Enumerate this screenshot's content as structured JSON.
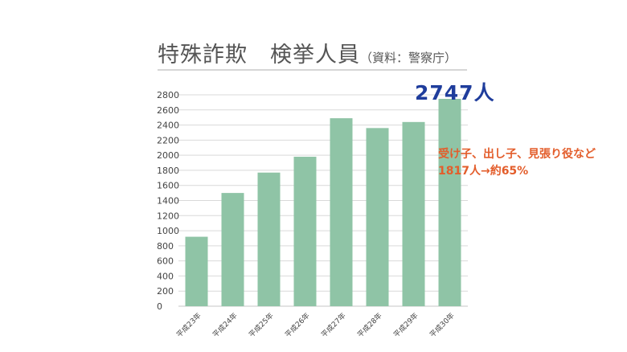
{
  "chart_data": {
    "type": "bar",
    "title": "特殊詐欺　検挙人員",
    "subtitle": "（資料：警察庁）",
    "categories": [
      "平成23年",
      "平成24年",
      "平成25年",
      "平成26年",
      "平成27年",
      "平成28年",
      "平成29年",
      "平成30年"
    ],
    "values": [
      920,
      1500,
      1770,
      1980,
      2490,
      2360,
      2440,
      2747
    ],
    "ylim": [
      0,
      2800
    ],
    "yticks": [
      0,
      200,
      400,
      600,
      800,
      1000,
      1200,
      1400,
      1600,
      1800,
      2000,
      2200,
      2400,
      2600,
      2800
    ],
    "xlabel": "",
    "ylabel": "",
    "grid": true,
    "bar_color": "#8fc4a6",
    "highlight_label": "2747人",
    "annotation_lines": [
      "受け子、出し子、見張り役など",
      "1817人→約65%"
    ]
  },
  "colors": {
    "title": "#555555",
    "highlight": "#1f3d9c",
    "annotation": "#e35d2b",
    "grid": "#d9d9d9"
  }
}
